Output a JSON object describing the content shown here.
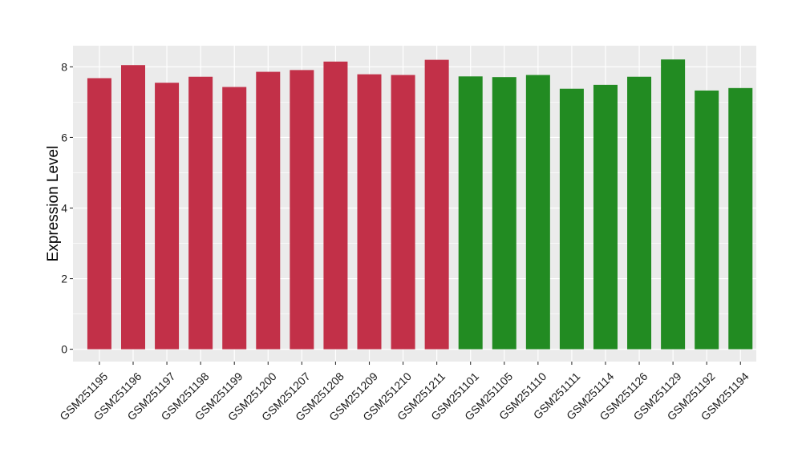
{
  "chart_data": {
    "type": "bar",
    "title": "",
    "xlabel": "",
    "ylabel": "Expression Level",
    "ylim": [
      -0.35,
      8.6
    ],
    "yticks": [
      0,
      2,
      4,
      6,
      8
    ],
    "grid": true,
    "categories": [
      "GSM251195",
      "GSM251196",
      "GSM251197",
      "GSM251198",
      "GSM251199",
      "GSM251200",
      "GSM251207",
      "GSM251208",
      "GSM251209",
      "GSM251210",
      "GSM251211",
      "GSM251101",
      "GSM251105",
      "GSM251110",
      "GSM251111",
      "GSM251114",
      "GSM251126",
      "GSM251129",
      "GSM251192",
      "GSM251194"
    ],
    "values": [
      7.68,
      8.05,
      7.55,
      7.72,
      7.43,
      7.86,
      7.91,
      8.15,
      7.79,
      7.77,
      8.2,
      7.73,
      7.71,
      7.77,
      7.38,
      7.49,
      7.72,
      8.21,
      7.33,
      7.4
    ],
    "groups": [
      {
        "color": "#c23048",
        "count": 11
      },
      {
        "color": "#228b22",
        "count": 9
      }
    ],
    "panel_background": "#ebebeb",
    "grid_color": "#ffffff"
  }
}
